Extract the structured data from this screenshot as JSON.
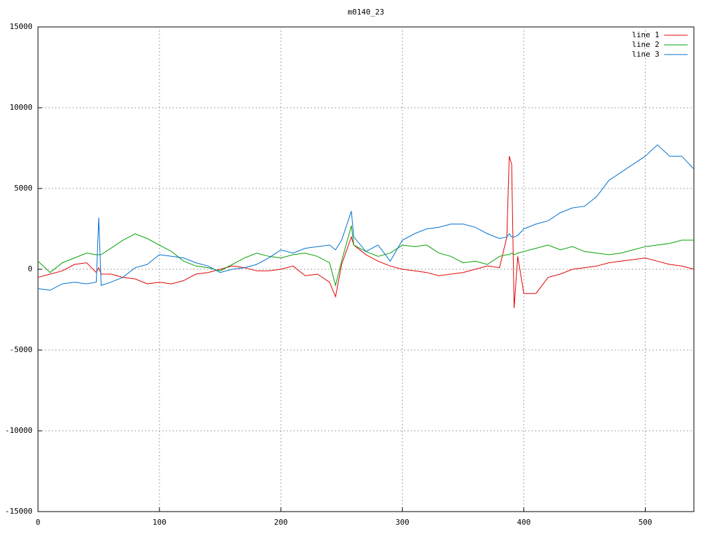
{
  "chart_data": {
    "type": "line",
    "title": "m0140_23",
    "x": [
      0,
      10,
      20,
      30,
      40,
      48,
      50,
      52,
      60,
      70,
      80,
      90,
      100,
      110,
      120,
      130,
      140,
      150,
      160,
      170,
      180,
      190,
      200,
      210,
      220,
      230,
      240,
      245,
      250,
      258,
      260,
      270,
      280,
      290,
      300,
      310,
      320,
      330,
      340,
      350,
      360,
      370,
      380,
      386,
      388,
      390,
      392,
      395,
      400,
      410,
      420,
      430,
      440,
      450,
      460,
      470,
      480,
      490,
      500,
      510,
      520,
      530,
      540
    ],
    "series": [
      {
        "name": "line 1",
        "color": "#e00000",
        "values": [
          -500,
          -300,
          -100,
          300,
          400,
          -200,
          100,
          -300,
          -300,
          -500,
          -600,
          -900,
          -800,
          -900,
          -700,
          -300,
          -200,
          0,
          200,
          100,
          -100,
          -100,
          0,
          200,
          -400,
          -300,
          -800,
          -1700,
          300,
          2000,
          1500,
          900,
          500,
          200,
          0,
          -100,
          -200,
          -400,
          -300,
          -200,
          0,
          200,
          100,
          2000,
          7000,
          6500,
          -2400,
          800,
          -1500,
          -1500,
          -500,
          -300,
          0,
          100,
          200,
          400,
          500,
          600,
          700,
          500,
          300,
          200,
          0
        ]
      },
      {
        "name": "line 2",
        "color": "#00a000",
        "values": [
          500,
          -200,
          400,
          700,
          1000,
          900,
          900,
          900,
          1300,
          1800,
          2200,
          1900,
          1500,
          1100,
          500,
          200,
          100,
          -100,
          300,
          700,
          1000,
          800,
          700,
          900,
          1000,
          800,
          400,
          -1000,
          500,
          2700,
          1500,
          1100,
          800,
          1000,
          1500,
          1400,
          1500,
          1000,
          800,
          400,
          500,
          300,
          800,
          900,
          900,
          1000,
          900,
          1000,
          1100,
          1300,
          1500,
          1200,
          1400,
          1100,
          1000,
          900,
          1000,
          1200,
          1400,
          1500,
          1600,
          1800,
          1800
        ]
      },
      {
        "name": "line 3",
        "color": "#0070d0",
        "values": [
          -1200,
          -1300,
          -900,
          -800,
          -900,
          -800,
          3200,
          -1000,
          -800,
          -500,
          100,
          300,
          900,
          800,
          700,
          400,
          200,
          -200,
          0,
          100,
          300,
          700,
          1200,
          1000,
          1300,
          1400,
          1500,
          1200,
          1800,
          3600,
          2000,
          1100,
          1500,
          500,
          1800,
          2200,
          2500,
          2600,
          2800,
          2800,
          2600,
          2200,
          1900,
          2000,
          2200,
          2000,
          2000,
          2100,
          2500,
          2800,
          3000,
          3500,
          3800,
          3900,
          4500,
          5500,
          6000,
          6500,
          7000,
          7700,
          7000,
          7000,
          6200
        ]
      }
    ],
    "xlim": [
      0,
      540
    ],
    "xticks": [
      0,
      100,
      200,
      300,
      400,
      500
    ],
    "ylim": [
      -15000,
      15000
    ],
    "yticks": [
      -15000,
      -10000,
      -5000,
      0,
      5000,
      10000,
      15000
    ],
    "grid": true,
    "legend": "top-right"
  }
}
